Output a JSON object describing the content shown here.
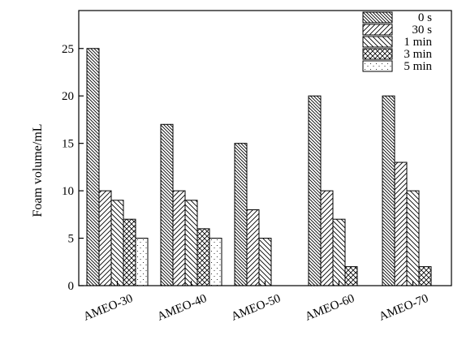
{
  "chart_data": {
    "type": "bar",
    "ylabel": "Foam volume/mL",
    "xlabel": "",
    "title": "",
    "ylim": [
      0,
      29
    ],
    "yticks": [
      0,
      5,
      10,
      15,
      20,
      25
    ],
    "grid": false,
    "legend_position": "top-right",
    "categories": [
      "AMEO-30",
      "AMEO-40",
      "AMEO-50",
      "AMEO-60",
      "AMEO-70"
    ],
    "series": [
      {
        "name": "0 s",
        "pattern": "diag-left-dense",
        "values": [
          25,
          17,
          15,
          20,
          20
        ]
      },
      {
        "name": "30 s",
        "pattern": "diag-right",
        "values": [
          10,
          10,
          8,
          10,
          13
        ]
      },
      {
        "name": "1 min",
        "pattern": "diag-left-sparse",
        "values": [
          9,
          9,
          5,
          7,
          10
        ]
      },
      {
        "name": "3 min",
        "pattern": "crosshatch",
        "values": [
          7,
          6,
          0,
          2,
          2
        ]
      },
      {
        "name": "5 min",
        "pattern": "dots",
        "values": [
          5,
          5,
          0,
          0,
          0
        ]
      }
    ]
  }
}
